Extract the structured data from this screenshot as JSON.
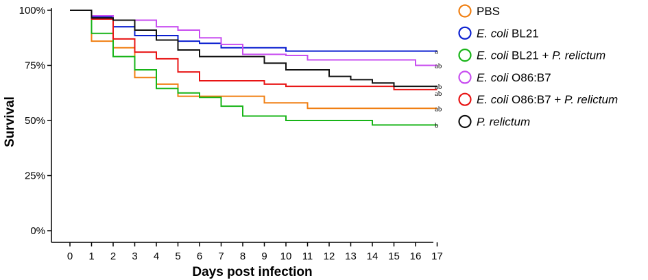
{
  "chart_data": {
    "type": "line",
    "step": true,
    "xlabel": "Days post infection",
    "ylabel": "Survival",
    "xlim": [
      0,
      17
    ],
    "ylim": [
      0,
      100
    ],
    "xticks": [
      "0",
      "1",
      "2",
      "3",
      "4",
      "5",
      "6",
      "7",
      "8",
      "9",
      "10",
      "11",
      "12",
      "13",
      "14",
      "15",
      "16",
      "17"
    ],
    "yticks": [
      {
        "value": 0,
        "label": "0%"
      },
      {
        "value": 25,
        "label": "25%"
      },
      {
        "value": 50,
        "label": "50%"
      },
      {
        "value": 75,
        "label": "75%"
      },
      {
        "value": 100,
        "label": "100%"
      }
    ],
    "series": [
      {
        "name": "PBS",
        "legend_parts": [
          {
            "text": "PBS",
            "italic": false
          }
        ],
        "color": "#f07f12",
        "sig": "ab",
        "steps": [
          [
            0,
            100
          ],
          [
            1,
            86
          ],
          [
            2,
            83
          ],
          [
            3,
            69.5
          ],
          [
            4,
            66.5
          ],
          [
            5,
            61
          ],
          [
            6,
            61
          ],
          [
            9,
            58
          ],
          [
            11,
            55.5
          ],
          [
            17,
            55.5
          ]
        ]
      },
      {
        "name": "E. coli BL21",
        "legend_parts": [
          {
            "text": "E. coli",
            "italic": true
          },
          {
            "text": " BL21",
            "italic": false
          }
        ],
        "color": "#0a1fd0",
        "sig": "a",
        "steps": [
          [
            0,
            100
          ],
          [
            1,
            97
          ],
          [
            2,
            92.5
          ],
          [
            3,
            88.5
          ],
          [
            5,
            86
          ],
          [
            6,
            85
          ],
          [
            7,
            83
          ],
          [
            10,
            81.5
          ],
          [
            17,
            81.5
          ]
        ]
      },
      {
        "name": "E. coli BL21 + P. relictum",
        "legend_parts": [
          {
            "text": "E. coli",
            "italic": true
          },
          {
            "text": " BL21 + ",
            "italic": false
          },
          {
            "text": "P. relictum",
            "italic": true
          }
        ],
        "color": "#18b418",
        "sig": "b",
        "steps": [
          [
            0,
            100
          ],
          [
            1,
            89.5
          ],
          [
            2,
            79
          ],
          [
            3,
            73
          ],
          [
            4,
            64.5
          ],
          [
            5,
            62.5
          ],
          [
            6,
            60.5
          ],
          [
            7,
            56.5
          ],
          [
            8,
            52
          ],
          [
            10,
            50
          ],
          [
            14,
            48
          ],
          [
            17,
            48
          ]
        ]
      },
      {
        "name": "E. coli O86:B7",
        "legend_parts": [
          {
            "text": "E. coli",
            "italic": true
          },
          {
            "text": " O86:B7",
            "italic": false
          }
        ],
        "color": "#c84ef0",
        "sig": "ab",
        "steps": [
          [
            0,
            100
          ],
          [
            1,
            97.5
          ],
          [
            2,
            95.5
          ],
          [
            4,
            92.5
          ],
          [
            5,
            91
          ],
          [
            6,
            87.5
          ],
          [
            7,
            84.5
          ],
          [
            8,
            80
          ],
          [
            10,
            79.5
          ],
          [
            11,
            77.5
          ],
          [
            16,
            75
          ],
          [
            17,
            75
          ]
        ]
      },
      {
        "name": "E. coli O86:B7 + P. relictum",
        "legend_parts": [
          {
            "text": "E. coli",
            "italic": true
          },
          {
            "text": " O86:B7 + ",
            "italic": false
          },
          {
            "text": "P. relictum",
            "italic": true
          }
        ],
        "color": "#e81414",
        "sig": "ab",
        "steps": [
          [
            0,
            100
          ],
          [
            1,
            96
          ],
          [
            2,
            87
          ],
          [
            3,
            81
          ],
          [
            4,
            78
          ],
          [
            5,
            72
          ],
          [
            6,
            68
          ],
          [
            9,
            66.5
          ],
          [
            10,
            65.5
          ],
          [
            15,
            64
          ],
          [
            17,
            64
          ]
        ]
      },
      {
        "name": "P. relictum",
        "legend_parts": [
          {
            "text": "P. relictum",
            "italic": true
          }
        ],
        "color": "#111111",
        "sig": "ab",
        "steps": [
          [
            0,
            100
          ],
          [
            1,
            96.5
          ],
          [
            2,
            95.5
          ],
          [
            3,
            91
          ],
          [
            4,
            86.5
          ],
          [
            5,
            82
          ],
          [
            6,
            79
          ],
          [
            8,
            79
          ],
          [
            9,
            76
          ],
          [
            10,
            73
          ],
          [
            12,
            70
          ],
          [
            13,
            68.5
          ],
          [
            14,
            67
          ],
          [
            15,
            65.5
          ],
          [
            17,
            65.5
          ]
        ]
      }
    ]
  }
}
